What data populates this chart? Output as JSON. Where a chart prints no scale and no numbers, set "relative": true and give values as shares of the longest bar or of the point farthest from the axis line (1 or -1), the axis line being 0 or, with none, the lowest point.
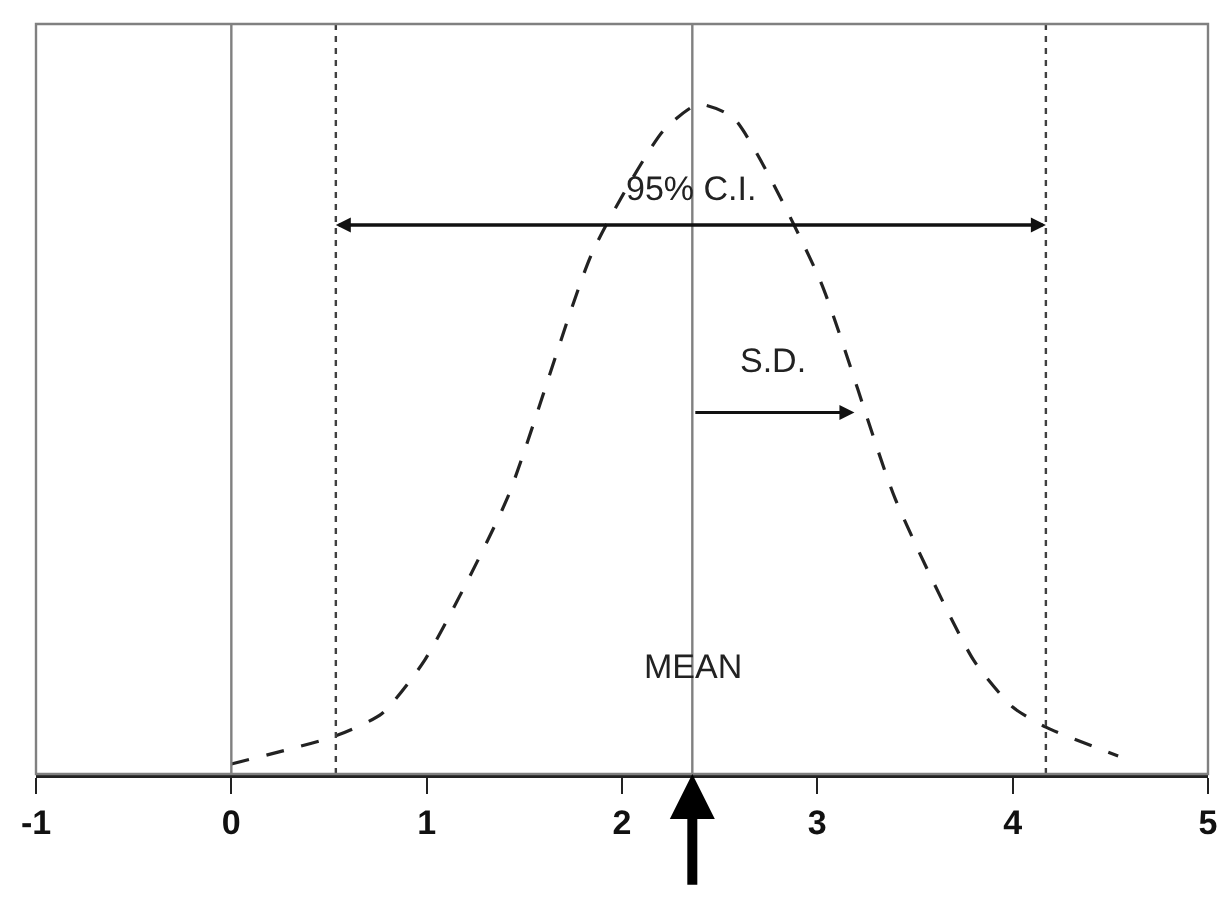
{
  "chart_data": {
    "type": "line",
    "relative": true,
    "line_style": "dashed",
    "marker": "none",
    "x": [
      0.0,
      0.535,
      0.77,
      0.99,
      1.41,
      1.85,
      2.21,
      2.39,
      2.57,
      3.01,
      3.4,
      3.8,
      4.0,
      4.17,
      4.54
    ],
    "series": [
      {
        "color": "#222222",
        "values": [
          0.015,
          0.057,
          0.09,
          0.17,
          0.41,
          0.78,
          0.96,
          1.0,
          0.98,
          0.74,
          0.41,
          0.17,
          0.1,
          0.07,
          0.027
        ]
      }
    ],
    "xlim": [
      -1,
      5
    ],
    "xticks": [
      -1,
      0,
      1,
      2,
      3,
      4,
      5
    ],
    "ref_lines": [
      {
        "axis": "x",
        "value": 0,
        "label": null,
        "color": "#808080",
        "line_style": "solid"
      },
      {
        "axis": "x",
        "value": 2.36,
        "label": "MEAN",
        "color": "#808080",
        "line_style": "solid"
      },
      {
        "axis": "x",
        "value": 0.535,
        "label": null,
        "color": "#404040",
        "line_style": "dotted"
      },
      {
        "axis": "x",
        "value": 4.17,
        "label": null,
        "color": "#404040",
        "line_style": "dotted"
      }
    ],
    "annotations": [
      {
        "text": "95% C.I.",
        "x": 2.35,
        "y": 0.82
      },
      {
        "text": "S.D.",
        "x": 3.19,
        "y": 0.54
      }
    ]
  }
}
